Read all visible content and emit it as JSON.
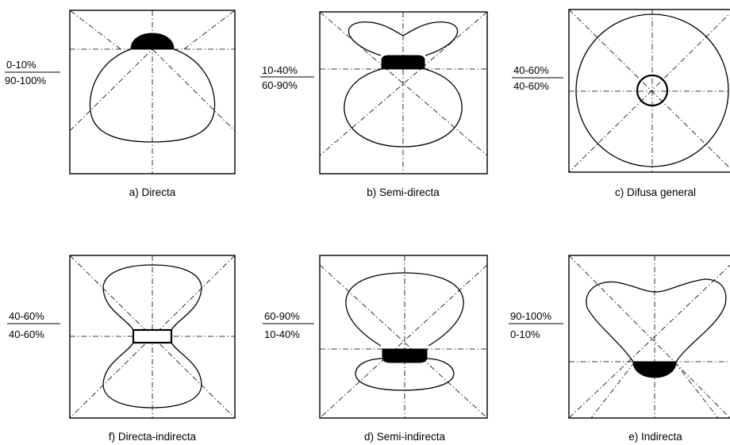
{
  "panels": [
    {
      "id": "a",
      "caption": "a) Directa",
      "upper": "0-10%",
      "lower": "90-100%"
    },
    {
      "id": "b",
      "caption": "b) Semi-directa",
      "upper": "10-40%",
      "lower": "60-90%"
    },
    {
      "id": "c",
      "caption": "c) Difusa  general",
      "upper": "40-60%",
      "lower": "40-60%"
    },
    {
      "id": "f",
      "caption": "f) Directa-indirecta",
      "upper": "40-60%",
      "lower": "40-60%"
    },
    {
      "id": "d",
      "caption": "d) Semi-indirecta",
      "upper": "60-90%",
      "lower": "10-40%"
    },
    {
      "id": "e",
      "caption": "e) Indirecta",
      "upper": "90-100%",
      "lower": "0-10%"
    }
  ]
}
